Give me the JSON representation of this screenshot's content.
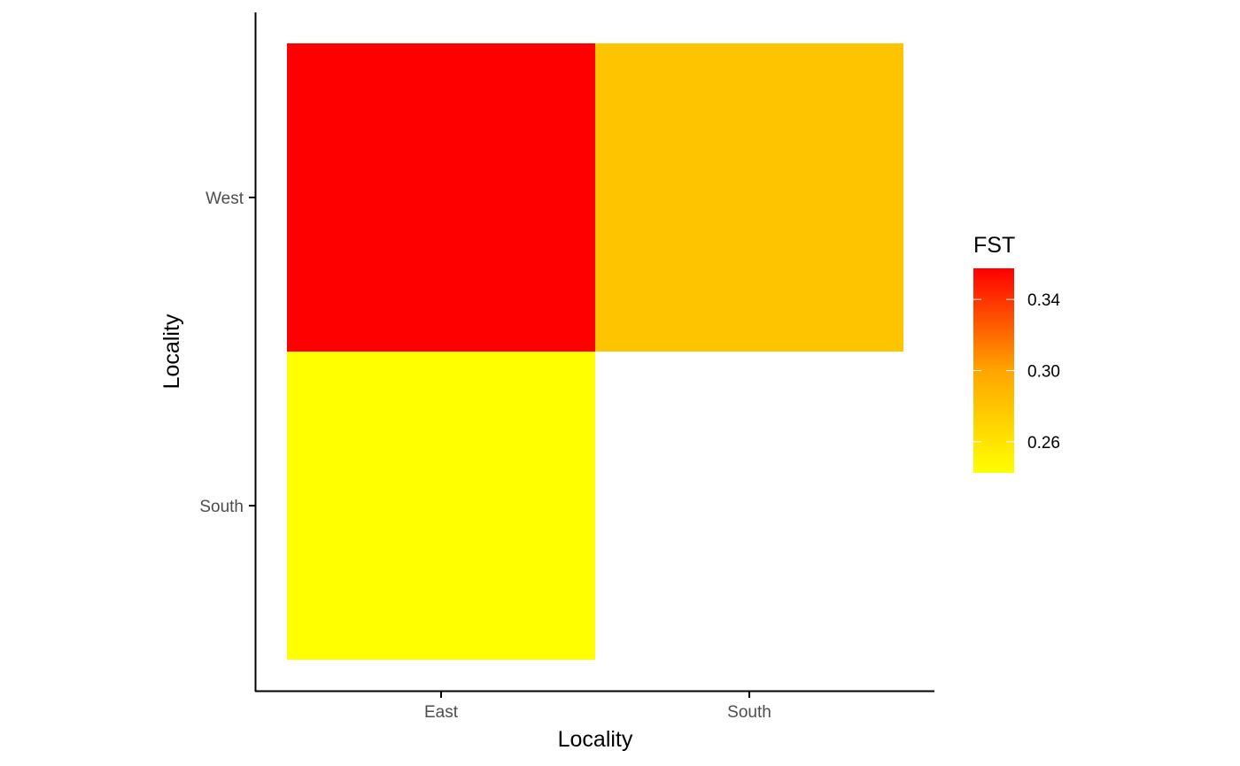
{
  "chart_data": {
    "type": "heatmap",
    "xlabel": "Locality",
    "ylabel": "Locality",
    "x_categories": [
      "East",
      "South"
    ],
    "y_categories": [
      "South",
      "West"
    ],
    "cells": [
      {
        "x": "East",
        "y": "West",
        "value": 0.36
      },
      {
        "x": "South",
        "y": "West",
        "value": 0.28
      },
      {
        "x": "East",
        "y": "South",
        "value": 0.24
      }
    ],
    "legend": {
      "title": "FST",
      "ticks": [
        0.26,
        0.3,
        0.34
      ],
      "tick_labels": [
        "0.26",
        "0.30",
        "0.34"
      ],
      "range": [
        0.2425,
        0.3575
      ],
      "low_color": "#ffff00",
      "high_color": "#ff0000"
    },
    "grid": false,
    "legend_position": "right"
  }
}
